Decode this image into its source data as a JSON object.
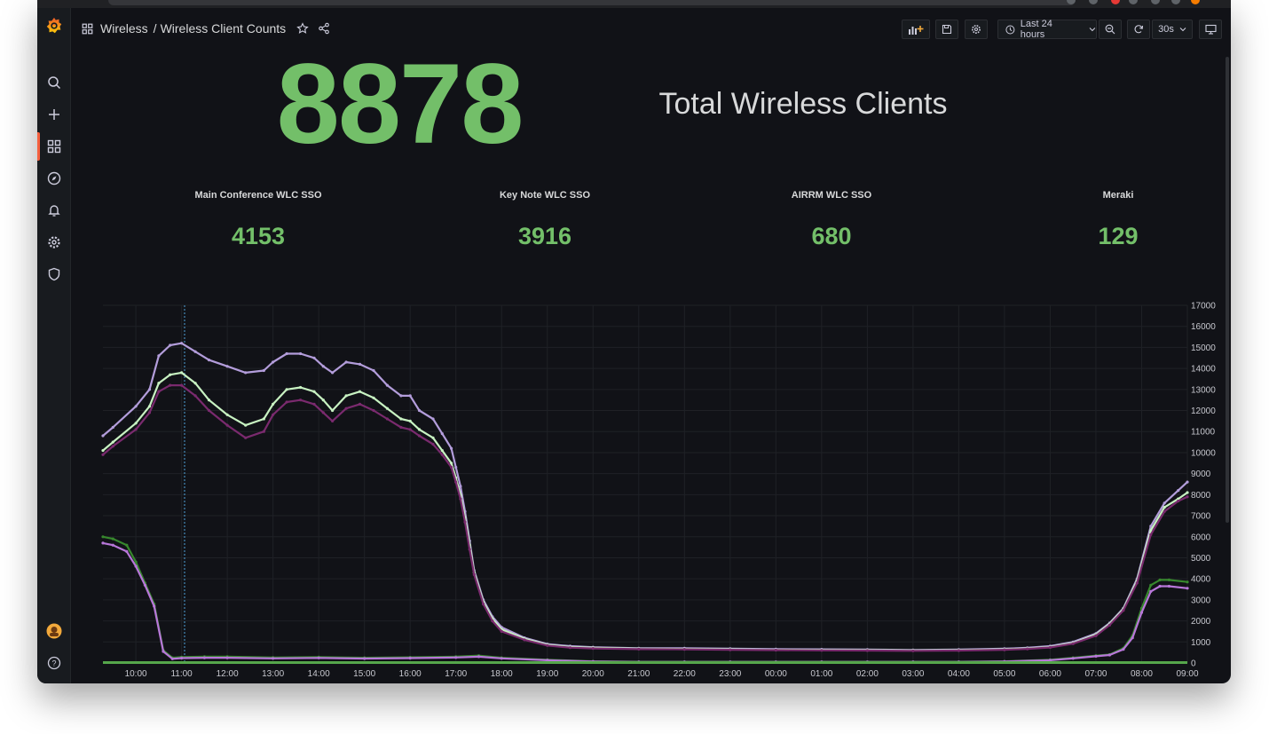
{
  "breadcrumb": {
    "folder": "Wireless",
    "separator": "/",
    "dashboard": "Wireless Client Counts"
  },
  "toolbar": {
    "time_range": "Last 24 hours",
    "refresh_interval": "30s"
  },
  "total_panel": {
    "value": "8878",
    "title": "Total Wireless Clients"
  },
  "stats": [
    {
      "title": "Main Conference WLC SSO",
      "value": "4153"
    },
    {
      "title": "Key Note WLC SSO",
      "value": "3916"
    },
    {
      "title": "AIRRM WLC SSO",
      "value": "680"
    },
    {
      "title": "Meraki",
      "value": "129"
    }
  ],
  "colors": {
    "accent_green": "#73bf69",
    "background": "#111217",
    "active_nav": "#f55f3e"
  },
  "chart_data": {
    "type": "line",
    "x_ticks": [
      "10:00",
      "11:00",
      "12:00",
      "13:00",
      "14:00",
      "15:00",
      "16:00",
      "17:00",
      "18:00",
      "19:00",
      "20:00",
      "21:00",
      "22:00",
      "23:00",
      "00:00",
      "01:00",
      "02:00",
      "03:00",
      "04:00",
      "05:00",
      "06:00",
      "07:00",
      "08:00",
      "09:00"
    ],
    "y_ticks": [
      0,
      1000,
      2000,
      3000,
      4000,
      5000,
      6000,
      7000,
      8000,
      9000,
      10000,
      11000,
      12000,
      13000,
      14000,
      15000,
      16000,
      17000
    ],
    "ylim": [
      0,
      17000
    ],
    "grid": true,
    "legend": "none",
    "series": [
      {
        "color": "#b39ddb",
        "x": [
          9.28,
          9.5,
          10,
          10.3,
          10.5,
          10.75,
          11,
          11.3,
          11.6,
          12,
          12.4,
          12.8,
          13,
          13.3,
          13.6,
          13.9,
          14.1,
          14.3,
          14.6,
          14.9,
          15.2,
          15.5,
          15.8,
          16,
          16.2,
          16.5,
          16.7,
          16.9,
          17,
          17.1,
          17.2,
          17.3,
          17.4,
          17.6,
          17.8,
          18,
          18.5,
          19,
          19.5,
          20,
          21,
          22,
          23,
          24,
          25,
          26,
          27,
          28,
          29,
          29.5,
          30,
          30.5,
          31,
          31.3,
          31.6,
          31.9,
          32.2,
          32.5,
          32.8,
          33
        ],
        "y": [
          10800,
          11200,
          12200,
          13000,
          14600,
          15100,
          15200,
          14800,
          14400,
          14100,
          13800,
          13900,
          14300,
          14700,
          14700,
          14500,
          14100,
          13800,
          14300,
          14200,
          13900,
          13200,
          12700,
          12700,
          12000,
          11600,
          10900,
          10200,
          9300,
          8400,
          7200,
          5800,
          4400,
          3000,
          2200,
          1700,
          1200,
          900,
          800,
          750,
          700,
          700,
          680,
          660,
          650,
          640,
          620,
          640,
          680,
          720,
          800,
          1000,
          1400,
          1900,
          2600,
          4000,
          6500,
          7600,
          8200,
          8600
        ]
      },
      {
        "color": "#c8f2c2",
        "x": [
          9.28,
          9.5,
          10,
          10.3,
          10.5,
          10.75,
          11,
          11.3,
          11.6,
          12,
          12.4,
          12.8,
          13,
          13.3,
          13.6,
          13.9,
          14.1,
          14.3,
          14.6,
          14.9,
          15.2,
          15.5,
          15.8,
          16,
          16.2,
          16.5,
          16.7,
          16.9,
          17,
          17.1,
          17.2,
          17.3,
          17.4,
          17.6,
          17.8,
          18,
          18.5,
          19,
          19.5,
          20,
          21,
          22,
          23,
          24,
          25,
          26,
          27,
          28,
          29,
          29.5,
          30,
          30.5,
          31,
          31.3,
          31.6,
          31.9,
          32.2,
          32.5,
          32.8,
          33
        ],
        "y": [
          10100,
          10500,
          11400,
          12200,
          13300,
          13700,
          13800,
          13300,
          12500,
          11800,
          11300,
          11600,
          12300,
          13000,
          13100,
          12900,
          12500,
          12000,
          12700,
          12900,
          12600,
          12100,
          11600,
          11500,
          11100,
          10700,
          10100,
          9500,
          8800,
          8000,
          6900,
          5600,
          4300,
          2900,
          2100,
          1600,
          1150,
          860,
          760,
          720,
          680,
          670,
          650,
          630,
          620,
          610,
          600,
          610,
          650,
          690,
          760,
          950,
          1350,
          1850,
          2550,
          3900,
          6300,
          7400,
          7800,
          8100
        ]
      },
      {
        "color": "#7a2a6e",
        "x": [
          9.28,
          9.5,
          10,
          10.3,
          10.5,
          10.75,
          11,
          11.3,
          11.6,
          12,
          12.4,
          12.8,
          13,
          13.3,
          13.6,
          13.9,
          14.1,
          14.3,
          14.6,
          14.9,
          15.2,
          15.5,
          15.8,
          16,
          16.2,
          16.5,
          16.7,
          16.9,
          17,
          17.1,
          17.2,
          17.3,
          17.4,
          17.6,
          17.8,
          18,
          18.5,
          19,
          19.5,
          20,
          21,
          22,
          23,
          24,
          25,
          26,
          27,
          28,
          29,
          29.5,
          30,
          30.5,
          31,
          31.3,
          31.6,
          31.9,
          32.2,
          32.5,
          32.8,
          33
        ],
        "y": [
          9900,
          10300,
          11100,
          11900,
          12900,
          13200,
          13200,
          12700,
          12000,
          11300,
          10700,
          11000,
          11800,
          12400,
          12500,
          12300,
          11900,
          11500,
          12100,
          12300,
          12000,
          11600,
          11200,
          11100,
          10800,
          10400,
          9900,
          9300,
          8600,
          7800,
          6700,
          5400,
          4200,
          2800,
          2000,
          1500,
          1100,
          830,
          730,
          690,
          660,
          650,
          630,
          610,
          600,
          590,
          580,
          590,
          630,
          670,
          740,
          920,
          1300,
          1800,
          2500,
          3800,
          6100,
          7200,
          7700,
          7900
        ]
      },
      {
        "color": "#37872d",
        "x": [
          9.28,
          9.5,
          9.8,
          10,
          10.2,
          10.4,
          10.6,
          10.8,
          11,
          11.5,
          12,
          13,
          14,
          15,
          16,
          17,
          17.5,
          18,
          19,
          20,
          21,
          22,
          23,
          24,
          25,
          26,
          27,
          28,
          29,
          30,
          30.5,
          31,
          31.3,
          31.6,
          31.8,
          32,
          32.2,
          32.4,
          32.6,
          33
        ],
        "y": [
          6000,
          5900,
          5600,
          4800,
          3800,
          2800,
          600,
          250,
          280,
          300,
          300,
          260,
          280,
          250,
          270,
          300,
          350,
          250,
          150,
          80,
          60,
          60,
          60,
          60,
          60,
          60,
          60,
          60,
          80,
          150,
          250,
          350,
          400,
          700,
          1300,
          2600,
          3700,
          3950,
          3950,
          3850
        ]
      },
      {
        "color": "#b877d9",
        "x": [
          9.28,
          9.5,
          9.8,
          10,
          10.2,
          10.4,
          10.6,
          10.8,
          11,
          11.5,
          12,
          13,
          14,
          15,
          16,
          17,
          17.5,
          18,
          19,
          20,
          21,
          22,
          23,
          24,
          25,
          26,
          27,
          28,
          29,
          30,
          30.5,
          31,
          31.3,
          31.6,
          31.8,
          32,
          32.2,
          32.4,
          32.6,
          33
        ],
        "y": [
          5700,
          5600,
          5300,
          4600,
          3700,
          2700,
          550,
          200,
          230,
          250,
          250,
          220,
          240,
          210,
          230,
          260,
          300,
          220,
          130,
          70,
          50,
          50,
          50,
          50,
          50,
          50,
          50,
          50,
          70,
          130,
          220,
          320,
          380,
          650,
          1200,
          2400,
          3400,
          3650,
          3650,
          3550
        ]
      },
      {
        "color": "#56a64b",
        "x": [
          9.28,
          10,
          12,
          15,
          18,
          21,
          24,
          27,
          30,
          33
        ],
        "y": [
          20,
          20,
          20,
          20,
          20,
          20,
          20,
          20,
          20,
          20
        ]
      }
    ]
  }
}
